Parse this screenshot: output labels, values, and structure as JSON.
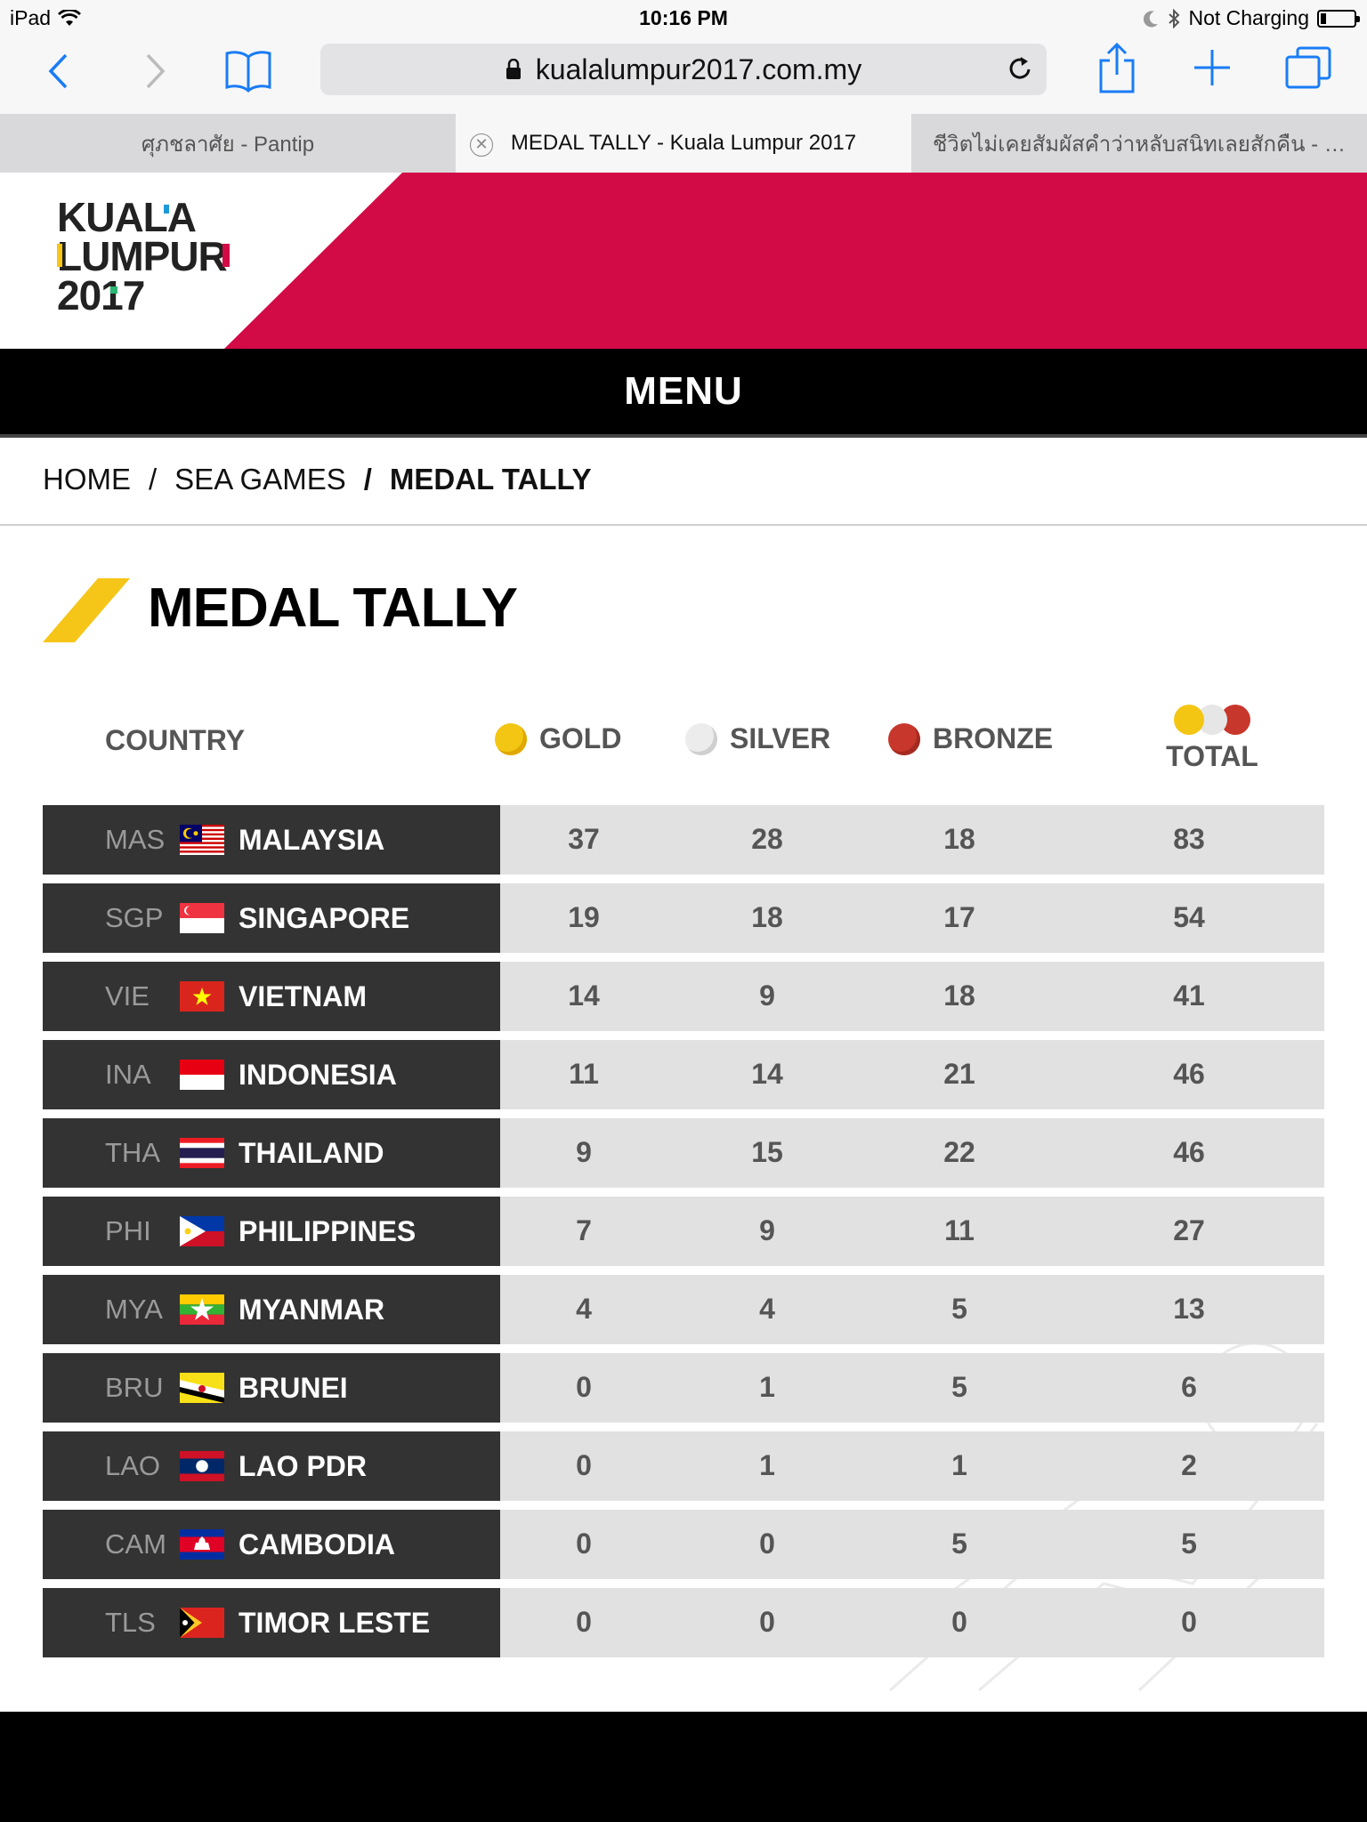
{
  "status_bar": {
    "device": "iPad",
    "time": "10:16 PM",
    "charging": "Not Charging"
  },
  "browser": {
    "url": "kualalumpur2017.com.my",
    "tabs": [
      {
        "label": "ศุภชลาศัย - Pantip",
        "active": false
      },
      {
        "label": "MEDAL TALLY - Kuala Lumpur 2017",
        "active": true
      },
      {
        "label": "ชีวิตไม่เคยสัมผัสคำว่าหลับสนิทเลยสักคืน - P...",
        "active": false
      }
    ]
  },
  "site": {
    "logo_lines": [
      "KUALA",
      "LUMPUR",
      "2017"
    ],
    "menu_label": "MENU",
    "accent_color": "#d20a46",
    "title_accent_color": "#f5c518"
  },
  "breadcrumb": {
    "home": "HOME",
    "section": "SEA GAMES",
    "current": "MEDAL TALLY"
  },
  "page_title": "MEDAL TALLY",
  "table": {
    "headers": {
      "country": "COUNTRY",
      "gold": "GOLD",
      "silver": "SILVER",
      "bronze": "BRONZE",
      "total": "TOTAL"
    },
    "medal_colors": {
      "gold": "#f3c614",
      "silver": "#e6e6e6",
      "bronze": "#c8372b"
    },
    "rows": [
      {
        "code": "MAS",
        "name": "MALAYSIA",
        "flag": "malaysia-flag",
        "gold": "37",
        "silver": "28",
        "bronze": "18",
        "total": "83"
      },
      {
        "code": "SGP",
        "name": "SINGAPORE",
        "flag": "singapore-flag",
        "gold": "19",
        "silver": "18",
        "bronze": "17",
        "total": "54"
      },
      {
        "code": "VIE",
        "name": "VIETNAM",
        "flag": "vietnam-flag",
        "gold": "14",
        "silver": "9",
        "bronze": "18",
        "total": "41"
      },
      {
        "code": "INA",
        "name": "INDONESIA",
        "flag": "indonesia-flag",
        "gold": "11",
        "silver": "14",
        "bronze": "21",
        "total": "46"
      },
      {
        "code": "THA",
        "name": "THAILAND",
        "flag": "thailand-flag",
        "gold": "9",
        "silver": "15",
        "bronze": "22",
        "total": "46"
      },
      {
        "code": "PHI",
        "name": "PHILIPPINES",
        "flag": "philippines-flag",
        "gold": "7",
        "silver": "9",
        "bronze": "11",
        "total": "27"
      },
      {
        "code": "MYA",
        "name": "MYANMAR",
        "flag": "myanmar-flag",
        "gold": "4",
        "silver": "4",
        "bronze": "5",
        "total": "13"
      },
      {
        "code": "BRU",
        "name": "BRUNEI",
        "flag": "brunei-flag",
        "gold": "0",
        "silver": "1",
        "bronze": "5",
        "total": "6"
      },
      {
        "code": "LAO",
        "name": "LAO PDR",
        "flag": "laos-flag",
        "gold": "0",
        "silver": "1",
        "bronze": "1",
        "total": "2"
      },
      {
        "code": "CAM",
        "name": "CAMBODIA",
        "flag": "cambodia-flag",
        "gold": "0",
        "silver": "0",
        "bronze": "5",
        "total": "5"
      },
      {
        "code": "TLS",
        "name": "TIMOR LESTE",
        "flag": "timor-leste-flag",
        "gold": "0",
        "silver": "0",
        "bronze": "0",
        "total": "0"
      }
    ]
  }
}
